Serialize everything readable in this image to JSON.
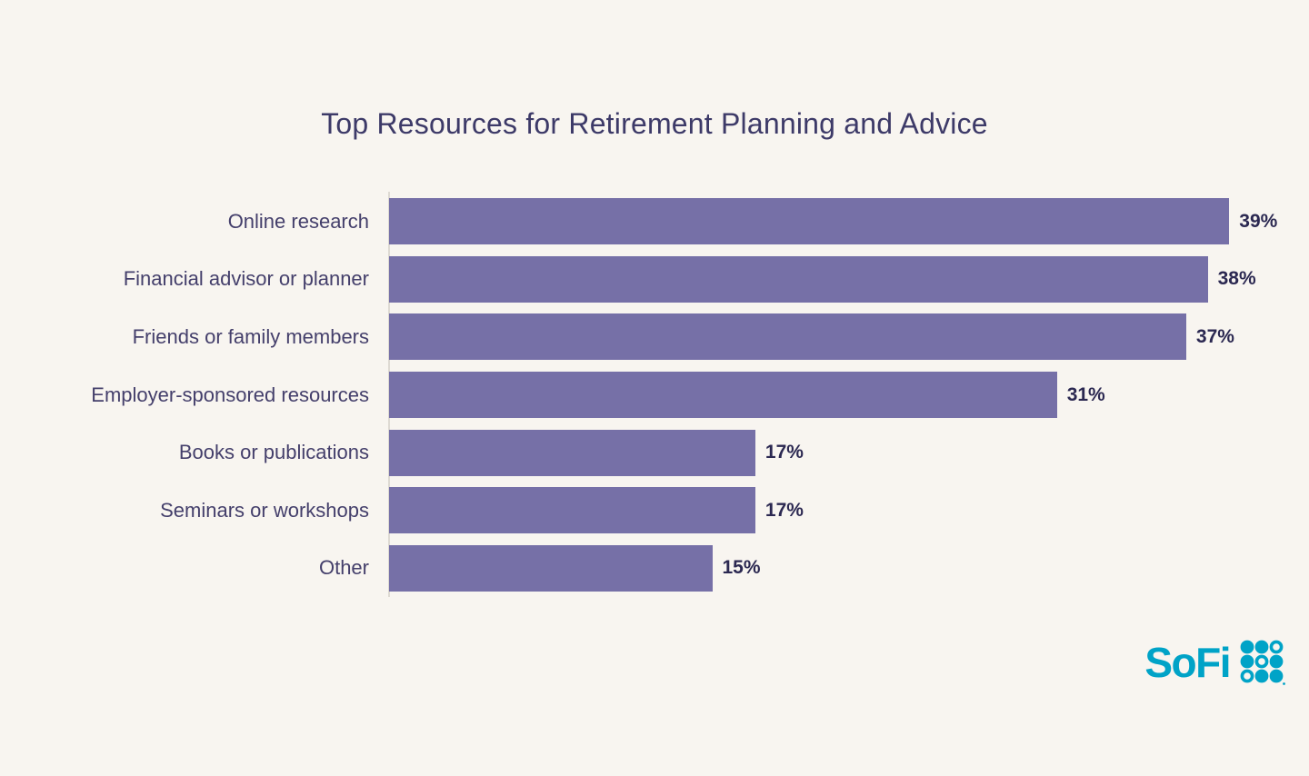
{
  "chart_data": {
    "type": "bar",
    "orientation": "horizontal",
    "title": "Top Resources for Retirement Planning and Advice",
    "categories": [
      "Online research",
      "Financial advisor or planner",
      "Friends or family members",
      "Employer-sponsored resources",
      "Books or publications",
      "Seminars or workshops",
      "Other"
    ],
    "values": [
      39,
      38,
      37,
      31,
      17,
      17,
      15
    ],
    "value_labels": [
      "39%",
      "38%",
      "37%",
      "31%",
      "17%",
      "17%",
      "15%"
    ],
    "value_suffix": "%",
    "xlim": [
      0,
      39
    ],
    "grid": false,
    "legend": "none",
    "bar_color": "#7670A7"
  },
  "branding": {
    "wordmark": "SoFi",
    "logo_color": "#00A3C7"
  },
  "colors": {
    "background": "#F8F5F0",
    "title": "#3D3A68",
    "label": "#443F6B",
    "value": "#2B2851",
    "axis_line": "#DEDAD3"
  }
}
